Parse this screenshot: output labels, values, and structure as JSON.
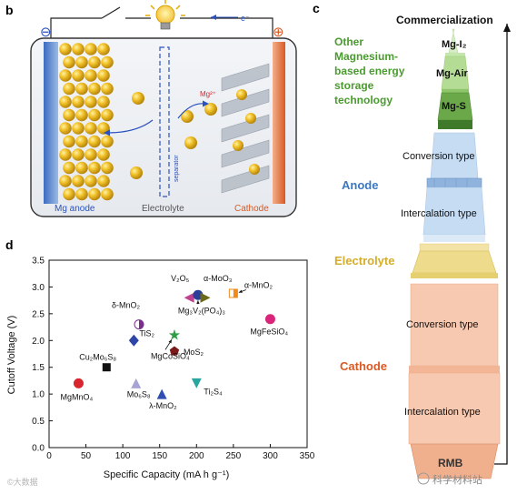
{
  "panel_b": {
    "label": "b",
    "electron": "e⁻",
    "mg_ion": "Mg²⁺",
    "minus": "⊖",
    "plus": "⊕",
    "separator": "separator",
    "mg_anode": "Mg anode",
    "electrolyte": "Electrolyte",
    "cathode": "Cathode"
  },
  "panel_c": {
    "label": "c",
    "commercialization": "Commercialization",
    "other_title": [
      "Other",
      "Magnesium-",
      "based energy",
      "storage",
      "technology"
    ],
    "mg_i2": "Mg-I₂",
    "mg_air": "Mg-Air",
    "mg_s": "Mg-S",
    "anode": "Anode",
    "electrolyte": "Electrolyte",
    "cathode": "Cathode",
    "anode_conversion": "Conversion type",
    "anode_intercalation": "Intercalation type",
    "cathode_conversion": "Conversion type",
    "cathode_intercalation": "Intercalation type",
    "base": "RMB"
  },
  "panel_d": {
    "label": "d",
    "chart_data": {
      "type": "scatter",
      "xlabel": "Specific Capacity (mA h g⁻¹)",
      "ylabel": "Cutoff Voltage (V)",
      "xlim": [
        0,
        350
      ],
      "ylim": [
        0.0,
        3.5
      ],
      "xticks": [
        "0",
        "50",
        "100",
        "150",
        "200",
        "250",
        "300",
        "350"
      ],
      "yticks": [
        "0.0",
        "0.5",
        "1.0",
        "1.5",
        "2.0",
        "2.5",
        "3.0",
        "3.5"
      ],
      "grid": false,
      "points": [
        {
          "label": "MgMnO₄",
          "x": 40,
          "y": 1.2,
          "color": "#d9262e",
          "marker": "circle"
        },
        {
          "label": "Cu₂Mo₆S₈",
          "x": 78,
          "y": 1.5,
          "color": "#111111",
          "marker": "square"
        },
        {
          "label": "Mo₆S₈",
          "x": 118,
          "y": 1.2,
          "color": "#a7a3d3",
          "marker": "triangle-up"
        },
        {
          "label": "λ-MnO₂",
          "x": 153,
          "y": 1.0,
          "color": "#2f4fb0",
          "marker": "triangle-up"
        },
        {
          "label": "TiS₂",
          "x": 115,
          "y": 2.0,
          "color": "#2d45a8",
          "marker": "diamond"
        },
        {
          "label": "δ-MnO₂",
          "x": 122,
          "y": 2.3,
          "color": "#7a2f8f",
          "marker": "half-circle"
        },
        {
          "label": "MgCoSiO₄",
          "x": 170,
          "y": 2.1,
          "color": "#2f9e47",
          "marker": "star"
        },
        {
          "label": "MoS₂",
          "x": 170,
          "y": 1.8,
          "color": "#7a1a1a",
          "marker": "pentagon"
        },
        {
          "label": "Ti₂S₄",
          "x": 200,
          "y": 1.2,
          "color": "#2aa6a0",
          "marker": "triangle-down"
        },
        {
          "label": "V₂O₅",
          "x": 190,
          "y": 2.8,
          "color": "#c0418f",
          "marker": "triangle-left"
        },
        {
          "label": "Mg₃V₂(PO₄)₃",
          "x": 202,
          "y": 2.85,
          "color": "#2a3e9a",
          "marker": "circle"
        },
        {
          "label": "α-MoO₃",
          "x": 212,
          "y": 2.8,
          "color": "#6a6a1a",
          "marker": "triangle-right"
        },
        {
          "label": "α-MnO₂",
          "x": 250,
          "y": 2.88,
          "color": "#f08a1a",
          "marker": "half-square"
        },
        {
          "label": "MgFeSiO₄",
          "x": 300,
          "y": 2.4,
          "color": "#d9267a",
          "marker": "circle"
        }
      ]
    }
  },
  "watermarks": {
    "left": "©大数据",
    "right": "科学材料站"
  }
}
